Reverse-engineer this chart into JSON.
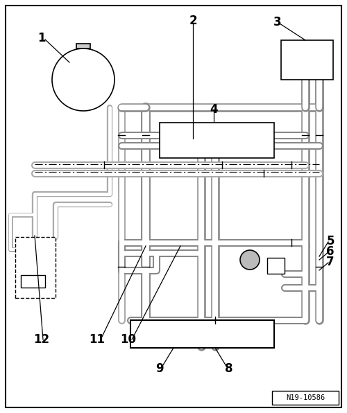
{
  "fig_width": 5.0,
  "fig_height": 5.96,
  "dpi": 100,
  "bg_color": "#ffffff",
  "ref_label": "N19-10586",
  "pipe_gray": "#aaaaaa",
  "pipe_dark": "#888888",
  "pipe_outer": 7,
  "pipe_inner": 4
}
